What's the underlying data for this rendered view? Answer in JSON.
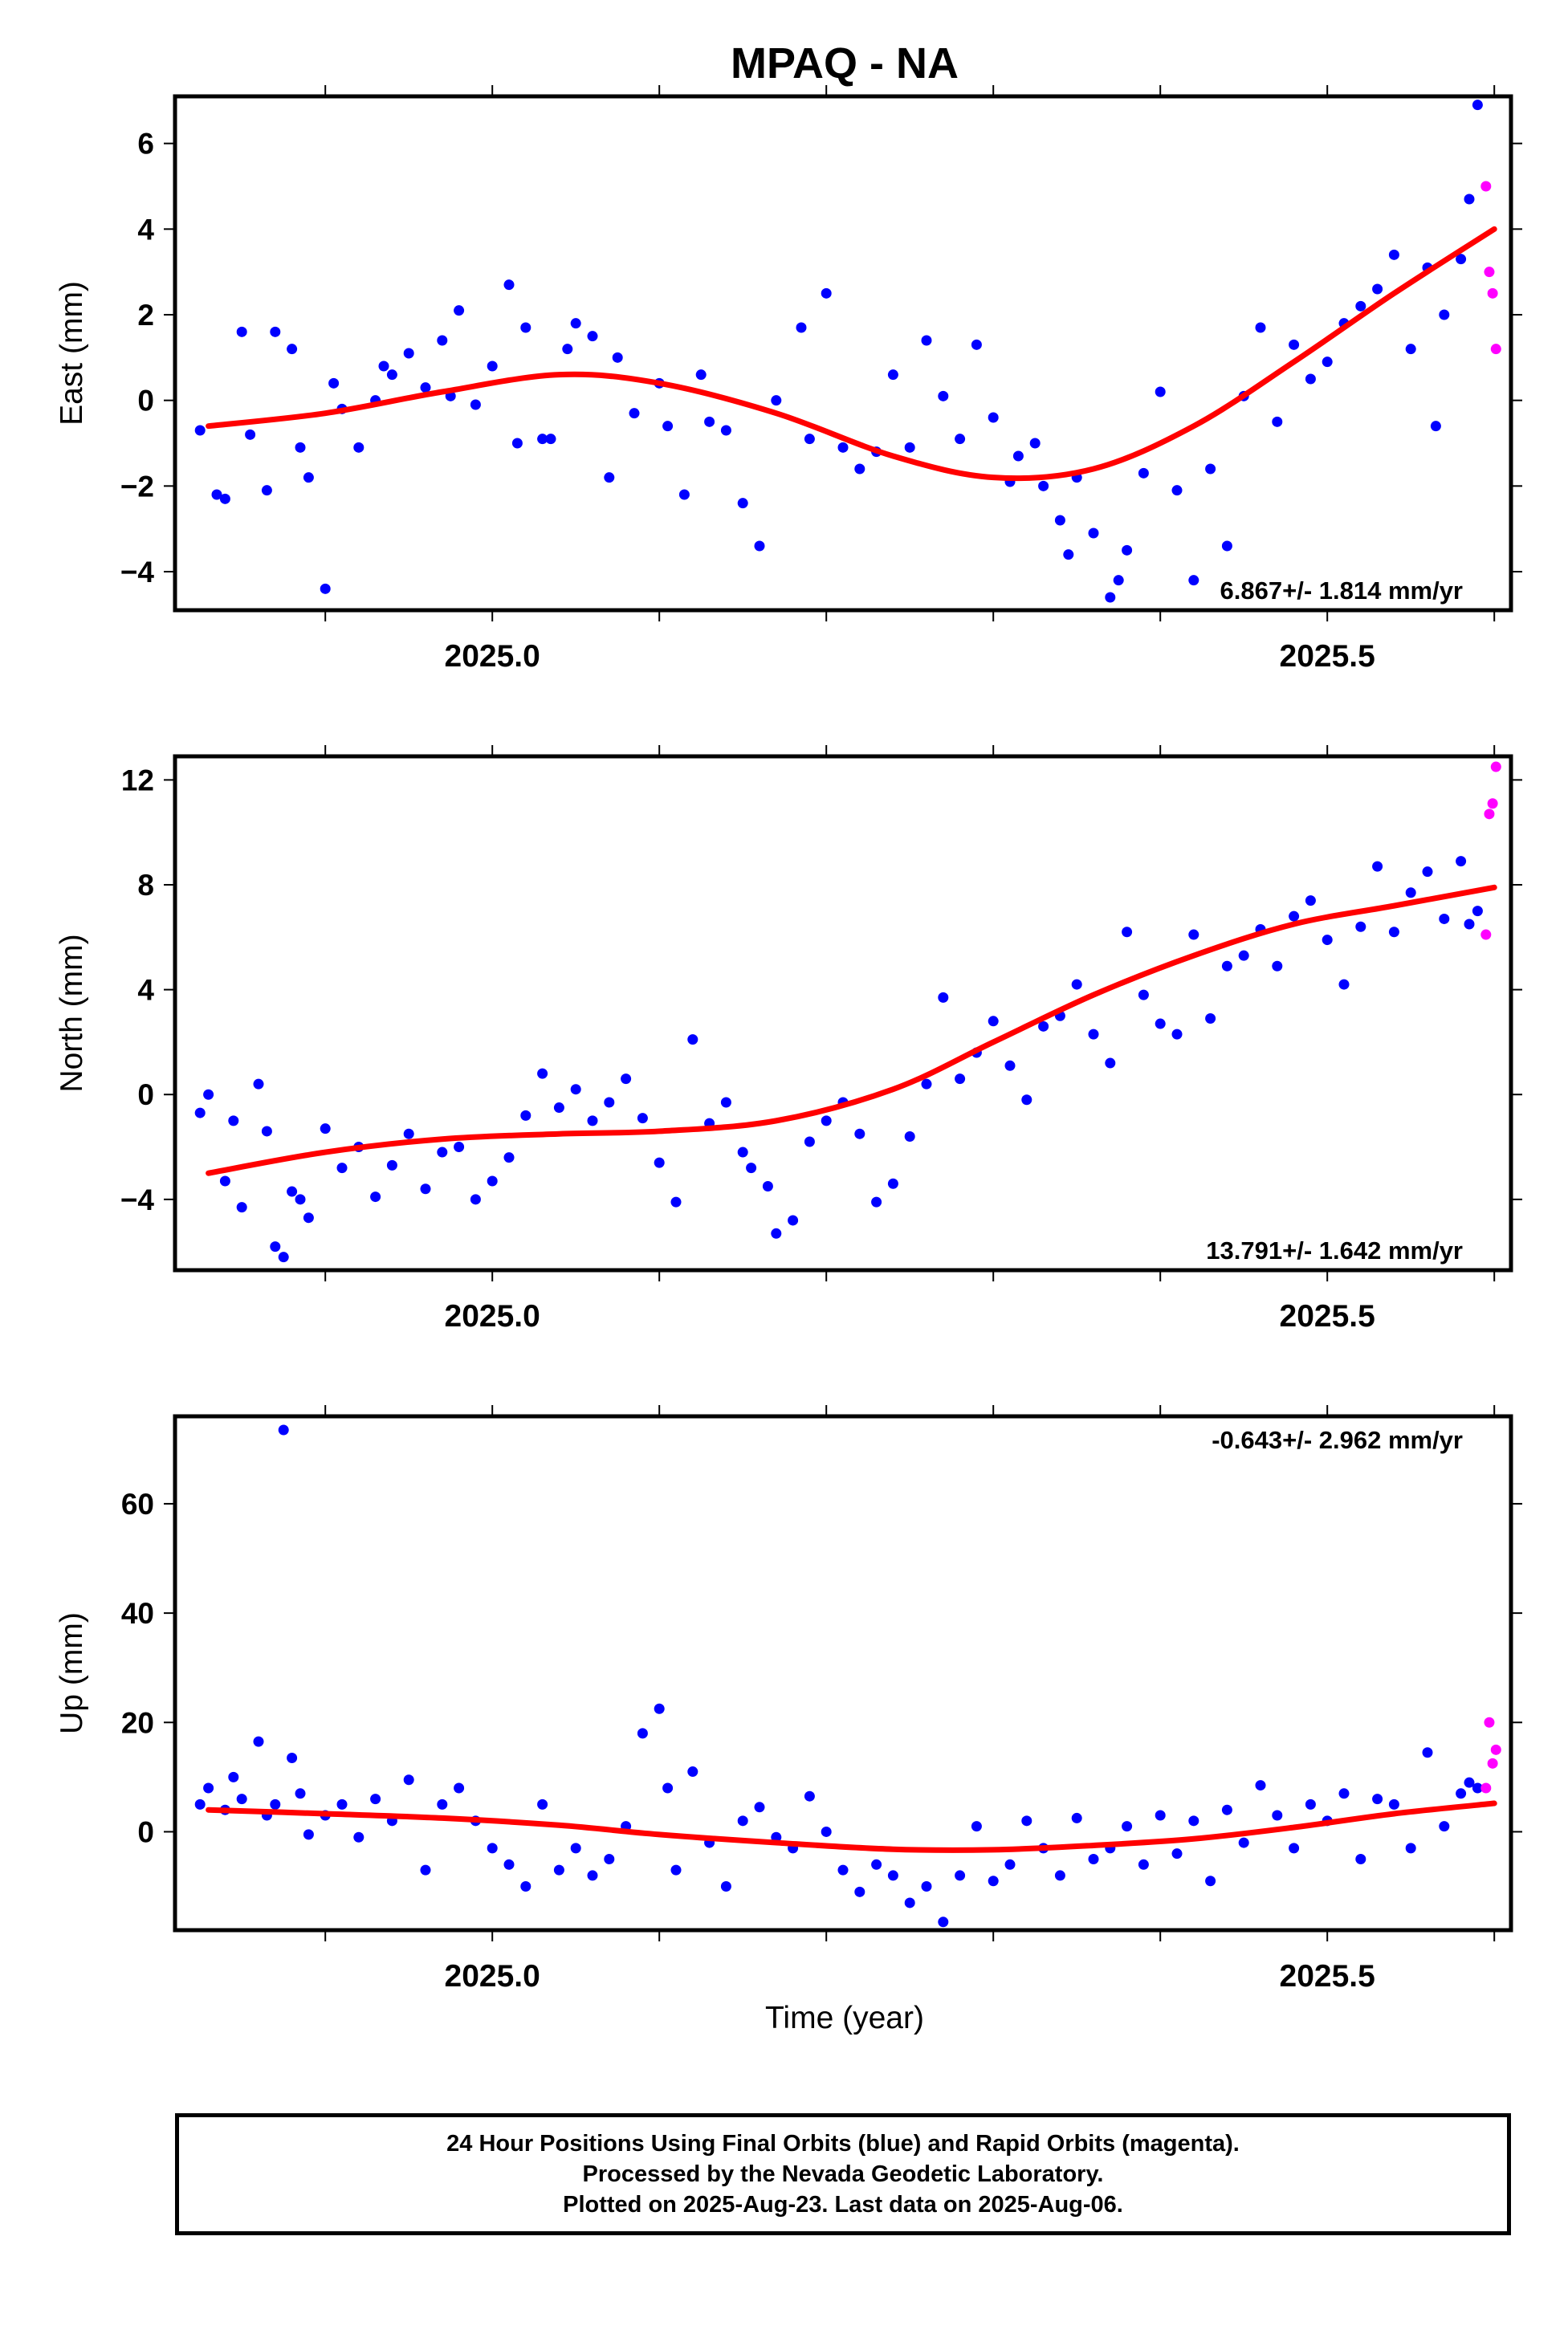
{
  "title": "MPAQ - NA",
  "colors": {
    "final_points": "#0000ff",
    "rapid_points": "#ff00ff",
    "trend": "#ff0000",
    "frame": "#000000"
  },
  "xaxis": {
    "label": "Time (year)",
    "range": [
      2024.81,
      2025.61
    ],
    "ticks": [
      2025.0,
      2025.5
    ],
    "tick_labels": [
      "2025.0",
      "2025.5"
    ],
    "minor_ticks": [
      2024.9,
      2025.0,
      2025.1,
      2025.2,
      2025.3,
      2025.4,
      2025.5,
      2025.6
    ]
  },
  "caption": [
    "24 Hour Positions Using Final Orbits (blue) and Rapid Orbits (magenta).",
    "Processed by the Nevada Geodetic Laboratory.",
    "Plotted on 2025-Aug-23. Last data on 2025-Aug-06."
  ],
  "chart_data": [
    {
      "type": "scatter",
      "ylabel": "East (mm)",
      "ylim": [
        -4.9,
        7.1
      ],
      "yticks": [
        -4,
        -2,
        0,
        2,
        4,
        6
      ],
      "ytick_labels": [
        "−4",
        "−2",
        "0",
        "2",
        "4",
        "6"
      ],
      "rate_label": "6.867+/- 1.814 mm/yr",
      "rate_position": "bottom-right",
      "trend": {
        "x": [
          2024.83,
          2024.9,
          2024.97,
          2025.04,
          2025.1,
          2025.17,
          2025.24,
          2025.3,
          2025.36,
          2025.42,
          2025.48,
          2025.54,
          2025.6
        ],
        "y": [
          -0.6,
          -0.3,
          0.2,
          0.6,
          0.4,
          -0.3,
          -1.3,
          -1.8,
          -1.6,
          -0.6,
          0.9,
          2.5,
          4.0
        ]
      },
      "series": [
        {
          "orbits": "final",
          "x": [
            2024.825,
            2024.835,
            2024.84,
            2024.85,
            2024.855,
            2024.865,
            2024.87,
            2024.88,
            2024.885,
            2024.89,
            2024.9,
            2024.905,
            2024.91,
            2024.92,
            2024.93,
            2024.935,
            2024.94,
            2024.95,
            2024.96,
            2024.97,
            2024.975,
            2024.98,
            2024.99,
            2025.0,
            2025.01,
            2025.015,
            2025.02,
            2025.03,
            2025.035,
            2025.045,
            2025.05,
            2025.06,
            2025.07,
            2025.075,
            2025.085,
            2025.1,
            2025.105,
            2025.115,
            2025.125,
            2025.13,
            2025.14,
            2025.15,
            2025.16,
            2025.17,
            2025.185,
            2025.19,
            2025.2,
            2025.21,
            2025.22,
            2025.23,
            2025.24,
            2025.25,
            2025.26,
            2025.27,
            2025.28,
            2025.29,
            2025.3,
            2025.31,
            2025.315,
            2025.325,
            2025.33,
            2025.34,
            2025.345,
            2025.35,
            2025.36,
            2025.37,
            2025.375,
            2025.38,
            2025.39,
            2025.4,
            2025.41,
            2025.42,
            2025.43,
            2025.44,
            2025.45,
            2025.46,
            2025.47,
            2025.48,
            2025.49,
            2025.5,
            2025.51,
            2025.52,
            2025.53,
            2025.54,
            2025.55,
            2025.56,
            2025.565,
            2025.57,
            2025.58,
            2025.585,
            2025.59
          ],
          "y": [
            -0.7,
            -2.2,
            -2.3,
            1.6,
            -0.8,
            -2.1,
            1.6,
            1.2,
            -1.1,
            -1.8,
            -4.4,
            0.4,
            -0.2,
            -1.1,
            0.0,
            0.8,
            0.6,
            1.1,
            0.3,
            1.4,
            0.1,
            2.1,
            -0.1,
            0.8,
            2.7,
            -1.0,
            1.7,
            -0.9,
            -0.9,
            1.2,
            1.8,
            1.5,
            -1.8,
            1.0,
            -0.3,
            0.4,
            -0.6,
            -2.2,
            0.6,
            -0.5,
            -0.7,
            -2.4,
            -3.4,
            0.0,
            1.7,
            -0.9,
            2.5,
            -1.1,
            -1.6,
            -1.2,
            0.6,
            -1.1,
            1.4,
            0.1,
            -0.9,
            1.3,
            -0.4,
            -1.9,
            -1.3,
            -1.0,
            -2.0,
            -2.8,
            -3.6,
            -1.8,
            -3.1,
            -4.6,
            -4.2,
            -3.5,
            -1.7,
            0.2,
            -2.1,
            -4.2,
            -1.6,
            -3.4,
            0.1,
            1.7,
            -0.5,
            1.3,
            0.5,
            0.9,
            1.8,
            2.2,
            2.6,
            3.4,
            1.2,
            3.1,
            -0.6,
            2.0,
            3.3,
            4.7,
            6.9
          ]
        },
        {
          "orbits": "rapid",
          "x": [
            2025.595,
            2025.597,
            2025.599,
            2025.601
          ],
          "y": [
            5.0,
            3.0,
            2.5,
            1.2
          ]
        }
      ]
    },
    {
      "type": "scatter",
      "ylabel": "North (mm)",
      "ylim": [
        -6.7,
        12.9
      ],
      "yticks": [
        -4,
        0,
        4,
        8,
        12
      ],
      "ytick_labels": [
        "−4",
        "0",
        "4",
        "8",
        "12"
      ],
      "rate_label": "13.791+/- 1.642 mm/yr",
      "rate_position": "bottom-right",
      "trend": {
        "x": [
          2024.83,
          2024.9,
          2024.97,
          2025.04,
          2025.1,
          2025.17,
          2025.24,
          2025.3,
          2025.36,
          2025.42,
          2025.48,
          2025.54,
          2025.6
        ],
        "y": [
          -3.0,
          -2.2,
          -1.7,
          -1.5,
          -1.4,
          -1.0,
          0.2,
          2.0,
          3.8,
          5.3,
          6.5,
          7.2,
          7.9
        ]
      },
      "series": [
        {
          "orbits": "final",
          "x": [
            2024.825,
            2024.83,
            2024.84,
            2024.845,
            2024.85,
            2024.86,
            2024.865,
            2024.87,
            2024.875,
            2024.88,
            2024.885,
            2024.89,
            2024.9,
            2024.91,
            2024.92,
            2024.93,
            2024.94,
            2024.95,
            2024.96,
            2024.97,
            2024.98,
            2024.99,
            2025.0,
            2025.01,
            2025.02,
            2025.03,
            2025.04,
            2025.05,
            2025.06,
            2025.07,
            2025.08,
            2025.09,
            2025.1,
            2025.11,
            2025.12,
            2025.13,
            2025.14,
            2025.15,
            2025.155,
            2025.165,
            2025.17,
            2025.18,
            2025.19,
            2025.2,
            2025.21,
            2025.22,
            2025.23,
            2025.24,
            2025.25,
            2025.26,
            2025.27,
            2025.28,
            2025.29,
            2025.3,
            2025.31,
            2025.32,
            2025.33,
            2025.34,
            2025.35,
            2025.36,
            2025.37,
            2025.38,
            2025.39,
            2025.4,
            2025.41,
            2025.42,
            2025.43,
            2025.44,
            2025.45,
            2025.46,
            2025.47,
            2025.48,
            2025.49,
            2025.5,
            2025.51,
            2025.52,
            2025.53,
            2025.54,
            2025.55,
            2025.56,
            2025.57,
            2025.58,
            2025.585,
            2025.59
          ],
          "y": [
            -0.7,
            0.0,
            -3.3,
            -1.0,
            -4.3,
            0.4,
            -1.4,
            -5.8,
            -6.2,
            -3.7,
            -4.0,
            -4.7,
            -1.3,
            -2.8,
            -2.0,
            -3.9,
            -2.7,
            -1.5,
            -3.6,
            -2.2,
            -2.0,
            -4.0,
            -3.3,
            -2.4,
            -0.8,
            0.8,
            -0.5,
            0.2,
            -1.0,
            -0.3,
            0.6,
            -0.9,
            -2.6,
            -4.1,
            2.1,
            -1.1,
            -0.3,
            -2.2,
            -2.8,
            -3.5,
            -5.3,
            -4.8,
            -1.8,
            -1.0,
            -0.3,
            -1.5,
            -4.1,
            -3.4,
            -1.6,
            0.4,
            3.7,
            0.6,
            1.6,
            2.8,
            1.1,
            -0.2,
            2.6,
            3.0,
            4.2,
            2.3,
            1.2,
            6.2,
            3.8,
            2.7,
            2.3,
            6.1,
            2.9,
            4.9,
            5.3,
            6.3,
            4.9,
            6.8,
            7.4,
            5.9,
            4.2,
            6.4,
            8.7,
            6.2,
            7.7,
            8.5,
            6.7,
            8.9,
            6.5,
            7.0
          ]
        },
        {
          "orbits": "rapid",
          "x": [
            2025.595,
            2025.597,
            2025.599,
            2025.601
          ],
          "y": [
            6.1,
            10.7,
            11.1,
            12.5
          ]
        }
      ]
    },
    {
      "type": "scatter",
      "ylabel": "Up (mm)",
      "xlabel": "Time (year)",
      "ylim": [
        -18,
        76
      ],
      "yticks": [
        0,
        20,
        40,
        60
      ],
      "ytick_labels": [
        "0",
        "20",
        "40",
        "60"
      ],
      "rate_label": "-0.643+/- 2.962 mm/yr",
      "rate_position": "top-right",
      "trend": {
        "x": [
          2024.83,
          2024.9,
          2024.97,
          2025.04,
          2025.1,
          2025.17,
          2025.24,
          2025.3,
          2025.36,
          2025.42,
          2025.48,
          2025.54,
          2025.6
        ],
        "y": [
          4.0,
          3.3,
          2.5,
          1.2,
          -0.5,
          -2.0,
          -3.2,
          -3.3,
          -2.5,
          -1.3,
          0.8,
          3.3,
          5.2
        ]
      },
      "series": [
        {
          "orbits": "final",
          "x": [
            2024.825,
            2024.83,
            2024.84,
            2024.845,
            2024.85,
            2024.86,
            2024.865,
            2024.87,
            2024.875,
            2024.88,
            2024.885,
            2024.89,
            2024.9,
            2024.91,
            2024.92,
            2024.93,
            2024.94,
            2024.95,
            2024.96,
            2024.97,
            2024.98,
            2024.99,
            2025.0,
            2025.01,
            2025.02,
            2025.03,
            2025.04,
            2025.05,
            2025.06,
            2025.07,
            2025.08,
            2025.09,
            2025.1,
            2025.105,
            2025.11,
            2025.12,
            2025.13,
            2025.14,
            2025.15,
            2025.16,
            2025.17,
            2025.18,
            2025.19,
            2025.2,
            2025.21,
            2025.22,
            2025.23,
            2025.24,
            2025.25,
            2025.26,
            2025.27,
            2025.28,
            2025.29,
            2025.3,
            2025.31,
            2025.32,
            2025.33,
            2025.34,
            2025.35,
            2025.36,
            2025.37,
            2025.38,
            2025.39,
            2025.4,
            2025.41,
            2025.42,
            2025.43,
            2025.44,
            2025.45,
            2025.46,
            2025.47,
            2025.48,
            2025.49,
            2025.5,
            2025.51,
            2025.52,
            2025.53,
            2025.54,
            2025.55,
            2025.56,
            2025.57,
            2025.58,
            2025.585,
            2025.59
          ],
          "y": [
            5.0,
            8.0,
            4.0,
            10.0,
            6.0,
            16.5,
            3.0,
            5.0,
            73.5,
            13.5,
            7.0,
            -0.5,
            3.0,
            5.0,
            -1.0,
            6.0,
            2.0,
            9.5,
            -7.0,
            5.0,
            8.0,
            2.0,
            -3.0,
            -6.0,
            -10.0,
            5.0,
            -7.0,
            -3.0,
            -8.0,
            -5.0,
            1.0,
            18.0,
            22.5,
            8.0,
            -7.0,
            11.0,
            -2.0,
            -10.0,
            2.0,
            4.5,
            -1.0,
            -3.0,
            6.5,
            0.0,
            -7.0,
            -11.0,
            -6.0,
            -8.0,
            -13.0,
            -10.0,
            -16.5,
            -8.0,
            1.0,
            -9.0,
            -6.0,
            2.0,
            -3.0,
            -8.0,
            2.5,
            -5.0,
            -3.0,
            1.0,
            -6.0,
            3.0,
            -4.0,
            2.0,
            -9.0,
            4.0,
            -2.0,
            8.5,
            3.0,
            -3.0,
            5.0,
            2.0,
            7.0,
            -5.0,
            6.0,
            5.0,
            -3.0,
            14.5,
            1.0,
            7.0,
            9.0,
            8.0
          ]
        },
        {
          "orbits": "rapid",
          "x": [
            2025.595,
            2025.597,
            2025.599,
            2025.601
          ],
          "y": [
            8.0,
            20.0,
            12.5,
            15.0
          ]
        }
      ]
    }
  ]
}
